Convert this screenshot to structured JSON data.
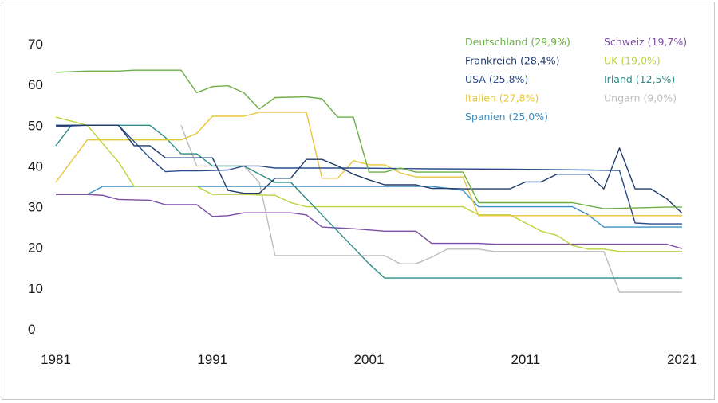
{
  "chart_data": {
    "type": "line",
    "title": "",
    "xlabel": "",
    "ylabel": "",
    "xlim": [
      1981,
      2021
    ],
    "ylim": [
      0,
      70
    ],
    "x_ticks": [
      "1981",
      "1991",
      "2001",
      "2011",
      "2021"
    ],
    "y_ticks": [
      "0",
      "10",
      "20",
      "30",
      "40",
      "50",
      "60",
      "70"
    ],
    "grid": false,
    "legend_position": "top-right",
    "series": [
      {
        "name": "Deutschland",
        "label": "Deutschland (29,9%)",
        "color": "#6cae46",
        "points": [
          [
            1981,
            63
          ],
          [
            1983,
            63.3
          ],
          [
            1985,
            63.3
          ],
          [
            1986,
            63.5
          ],
          [
            1989,
            63.5
          ],
          [
            1990,
            58
          ],
          [
            1991,
            59.5
          ],
          [
            1992,
            59.7
          ],
          [
            1993,
            58
          ],
          [
            1994,
            54
          ],
          [
            1995,
            56.8
          ],
          [
            1997,
            57
          ],
          [
            1998,
            56.5
          ],
          [
            1999,
            52
          ],
          [
            2000,
            52
          ],
          [
            2001,
            38.5
          ],
          [
            2002,
            38.5
          ],
          [
            2003,
            39.5
          ],
          [
            2004,
            38.5
          ],
          [
            2007,
            38.5
          ],
          [
            2008,
            31
          ],
          [
            2009,
            31
          ],
          [
            2010,
            31
          ],
          [
            2011,
            31
          ],
          [
            2014,
            31
          ],
          [
            2016,
            29.5
          ],
          [
            2020,
            29.9
          ],
          [
            2021,
            29.9
          ]
        ]
      },
      {
        "name": "Frankreich",
        "label": "Frankreich (28,4%)",
        "color": "#1f3a6b",
        "points": [
          [
            1981,
            50
          ],
          [
            1983,
            50
          ],
          [
            1985,
            50
          ],
          [
            1986,
            45
          ],
          [
            1987,
            45
          ],
          [
            1988,
            42
          ],
          [
            1991,
            42
          ],
          [
            1992,
            34
          ],
          [
            1993,
            33.3
          ],
          [
            1994,
            33.3
          ],
          [
            1995,
            37
          ],
          [
            1996,
            37
          ],
          [
            1997,
            41.6
          ],
          [
            1998,
            41.6
          ],
          [
            1999,
            40
          ],
          [
            2000,
            38
          ],
          [
            2001,
            36.6
          ],
          [
            2002,
            35.4
          ],
          [
            2004,
            35.4
          ],
          [
            2005,
            34.5
          ],
          [
            2006,
            34.5
          ],
          [
            2007,
            34.4
          ],
          [
            2010,
            34.4
          ],
          [
            2011,
            36.1
          ],
          [
            2012,
            36.1
          ],
          [
            2013,
            38
          ],
          [
            2015,
            38
          ],
          [
            2016,
            34.4
          ],
          [
            2017,
            44.4
          ],
          [
            2018,
            34.4
          ],
          [
            2019,
            34.4
          ],
          [
            2020,
            32
          ],
          [
            2021,
            28.4
          ]
        ]
      },
      {
        "name": "USA",
        "label": "USA (25,8%)",
        "color": "#2a4b8d",
        "points": [
          [
            1981,
            49.7
          ],
          [
            1983,
            50
          ],
          [
            1985,
            50
          ],
          [
            1986,
            46
          ],
          [
            1987,
            42
          ],
          [
            1988,
            38.6
          ],
          [
            1989,
            38.8
          ],
          [
            1990,
            38.8
          ],
          [
            1992,
            39
          ],
          [
            1993,
            40
          ],
          [
            1994,
            40
          ],
          [
            1995,
            39.5
          ],
          [
            2000,
            39.5
          ],
          [
            2005,
            39.3
          ],
          [
            2010,
            39.2
          ],
          [
            2015,
            39
          ],
          [
            2017,
            38.9
          ],
          [
            2018,
            26
          ],
          [
            2019,
            25.8
          ],
          [
            2021,
            25.8
          ]
        ]
      },
      {
        "name": "Italien",
        "label": "Italien (27,8%)",
        "color": "#e8c63a",
        "points": [
          [
            1981,
            36
          ],
          [
            1983,
            46.4
          ],
          [
            1989,
            46.4
          ],
          [
            1990,
            48
          ],
          [
            1991,
            52.2
          ],
          [
            1992,
            52.2
          ],
          [
            1993,
            52.2
          ],
          [
            1994,
            53.2
          ],
          [
            1997,
            53.2
          ],
          [
            1998,
            37
          ],
          [
            1999,
            37
          ],
          [
            2000,
            41.3
          ],
          [
            2001,
            40.3
          ],
          [
            2002,
            40.3
          ],
          [
            2003,
            38.3
          ],
          [
            2004,
            37.3
          ],
          [
            2007,
            37.3
          ],
          [
            2008,
            27.8
          ],
          [
            2016,
            27.8
          ],
          [
            2021,
            27.8
          ]
        ]
      },
      {
        "name": "Spanien",
        "label": "Spanien (25,0%)",
        "color": "#3b8fc4",
        "points": [
          [
            1981,
            33
          ],
          [
            1983,
            33
          ],
          [
            1984,
            35
          ],
          [
            1990,
            35
          ],
          [
            2000,
            35
          ],
          [
            2005,
            35
          ],
          [
            2007,
            34
          ],
          [
            2008,
            30
          ],
          [
            2012,
            30
          ],
          [
            2014,
            30
          ],
          [
            2015,
            28
          ],
          [
            2016,
            25
          ],
          [
            2021,
            25
          ]
        ]
      },
      {
        "name": "Schweiz",
        "label": "Schweiz (19,7%)",
        "color": "#7b4ea3",
        "points": [
          [
            1981,
            33
          ],
          [
            1983,
            33
          ],
          [
            1984,
            32.8
          ],
          [
            1985,
            31.8
          ],
          [
            1987,
            31.6
          ],
          [
            1988,
            30.5
          ],
          [
            1990,
            30.5
          ],
          [
            1991,
            27.6
          ],
          [
            1992,
            27.8
          ],
          [
            1993,
            28.5
          ],
          [
            1996,
            28.5
          ],
          [
            1997,
            28
          ],
          [
            1998,
            25
          ],
          [
            2000,
            24.6
          ],
          [
            2002,
            24
          ],
          [
            2004,
            24
          ],
          [
            2005,
            21
          ],
          [
            2008,
            21
          ],
          [
            2009,
            20.8
          ],
          [
            2019,
            20.8
          ],
          [
            2020,
            20.8
          ],
          [
            2021,
            19.7
          ]
        ]
      },
      {
        "name": "UK",
        "label": "UK (19,0%)",
        "color": "#bfd13c",
        "points": [
          [
            1981,
            52
          ],
          [
            1983,
            50
          ],
          [
            1985,
            41
          ],
          [
            1986,
            35
          ],
          [
            1990,
            35
          ],
          [
            1991,
            33
          ],
          [
            1993,
            33
          ],
          [
            1995,
            32.8
          ],
          [
            1996,
            31
          ],
          [
            1997,
            30
          ],
          [
            2000,
            30
          ],
          [
            2003,
            30
          ],
          [
            2005,
            30
          ],
          [
            2007,
            30
          ],
          [
            2008,
            28
          ],
          [
            2010,
            28
          ],
          [
            2011,
            26
          ],
          [
            2012,
            24
          ],
          [
            2013,
            23
          ],
          [
            2014,
            20.5
          ],
          [
            2015,
            19.6
          ],
          [
            2016,
            19.6
          ],
          [
            2017,
            19
          ],
          [
            2021,
            19
          ]
        ]
      },
      {
        "name": "Irland",
        "label": "Irland (12,5%)",
        "color": "#2f8c87",
        "points": [
          [
            1981,
            45
          ],
          [
            1982,
            50
          ],
          [
            1985,
            50
          ],
          [
            1986,
            50
          ],
          [
            1987,
            50
          ],
          [
            1988,
            47
          ],
          [
            1989,
            43
          ],
          [
            1990,
            43
          ],
          [
            1991,
            40
          ],
          [
            1993,
            40
          ],
          [
            1995,
            36
          ],
          [
            1996,
            36
          ],
          [
            1997,
            32
          ],
          [
            1998,
            28
          ],
          [
            1999,
            24
          ],
          [
            2000,
            20
          ],
          [
            2001,
            16
          ],
          [
            2002,
            12.5
          ],
          [
            2003,
            12.5
          ],
          [
            2021,
            12.5
          ]
        ]
      },
      {
        "name": "Ungarn",
        "label": "Ungarn (9,0%)",
        "color": "#bdbdbd",
        "points": [
          [
            1989,
            50
          ],
          [
            1990,
            40
          ],
          [
            1991,
            40
          ],
          [
            1992,
            40
          ],
          [
            1993,
            40
          ],
          [
            1994,
            36
          ],
          [
            1995,
            18
          ],
          [
            1996,
            18
          ],
          [
            2002,
            18
          ],
          [
            2003,
            16
          ],
          [
            2004,
            16
          ],
          [
            2005,
            17.6
          ],
          [
            2006,
            19.6
          ],
          [
            2008,
            19.6
          ],
          [
            2009,
            19
          ],
          [
            2014,
            19
          ],
          [
            2015,
            19
          ],
          [
            2016,
            19
          ],
          [
            2017,
            9
          ],
          [
            2021,
            9
          ]
        ]
      }
    ],
    "legend": {
      "left_column": [
        "Deutschland (29,9%)",
        "Frankreich (28,4%)",
        "USA (25,8%)",
        "Italien (27,8%)",
        "Spanien (25,0%)"
      ],
      "right_column": [
        "Schweiz (19,7%)",
        "UK (19,0%)",
        "Irland (12,5%)",
        "Ungarn (9,0%)"
      ]
    }
  }
}
